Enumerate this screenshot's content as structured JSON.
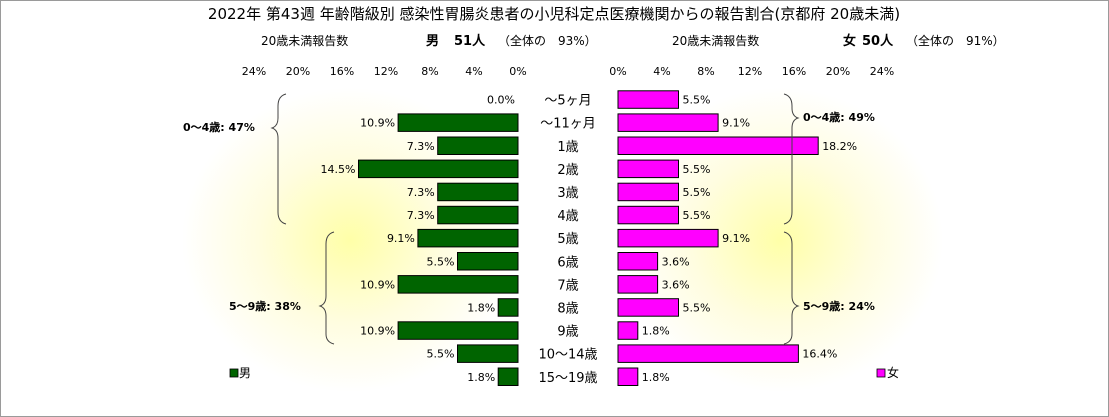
{
  "title": "2022年 第43週 年齢階級別 感染性胃腸炎患者の小児科定点医療機関からの報告割合(京都府 20歳未満)",
  "left_header": {
    "caption": "20歳未満報告数",
    "sex": "男",
    "count": "51人",
    "share": "（全体の　93%）"
  },
  "right_header": {
    "caption": "20歳未満報告数",
    "sex": "女",
    "count": "50人",
    "share": "（全体の　91%）"
  },
  "annotations": {
    "male_0_4": "0～4歳: 47%",
    "male_5_9": "5～9歳: 38%",
    "female_0_4": "0～4歳: 49%",
    "female_5_9": "5～9歳: 24%"
  },
  "colors": {
    "male": "#006400",
    "female": "#ff00ff",
    "background_glow": "#ffff99"
  },
  "chart_data": {
    "type": "bar",
    "orientation": "horizontal-butterfly",
    "title": "2022年 第43週 年齢階級別 感染性胃腸炎患者の小児科定点医療機関からの報告割合(京都府 20歳未満)",
    "categories": [
      "～5ヶ月",
      "～11ヶ月",
      "1歳",
      "2歳",
      "3歳",
      "4歳",
      "5歳",
      "6歳",
      "7歳",
      "8歳",
      "9歳",
      "10～14歳",
      "15～19歳"
    ],
    "x_ticks": [
      "24%",
      "20%",
      "16%",
      "12%",
      "8%",
      "4%",
      "0%"
    ],
    "x_ticks_right": [
      "0%",
      "4%",
      "8%",
      "12%",
      "16%",
      "20%",
      "24%"
    ],
    "xlim": [
      0,
      24
    ],
    "series": [
      {
        "name": "男",
        "color": "#006400",
        "values": [
          0.0,
          10.9,
          7.3,
          14.5,
          7.3,
          7.3,
          9.1,
          5.5,
          10.9,
          1.8,
          10.9,
          5.5,
          1.8
        ],
        "labels": [
          "0.0%",
          "10.9%",
          "7.3%",
          "14.5%",
          "7.3%",
          "7.3%",
          "9.1%",
          "5.5%",
          "10.9%",
          "1.8%",
          "10.9%",
          "5.5%",
          "1.8%"
        ]
      },
      {
        "name": "女",
        "color": "#ff00ff",
        "values": [
          5.5,
          9.1,
          18.2,
          5.5,
          5.5,
          5.5,
          9.1,
          3.6,
          3.6,
          5.5,
          1.8,
          16.4,
          1.8
        ],
        "labels": [
          "5.5%",
          "9.1%",
          "18.2%",
          "5.5%",
          "5.5%",
          "5.5%",
          "9.1%",
          "3.6%",
          "3.6%",
          "5.5%",
          "1.8%",
          "16.4%",
          "1.8%"
        ]
      }
    ],
    "legend": [
      "男",
      "女"
    ]
  }
}
